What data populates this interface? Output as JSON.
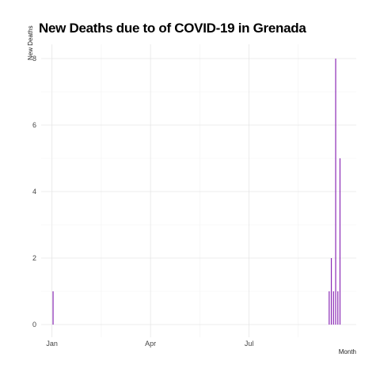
{
  "chart_data": {
    "type": "bar",
    "title": "New Deaths due to of COVID-19 in Grenada",
    "xlabel": "Month",
    "ylabel": "New Deaths",
    "x_ticks": [
      "2020-01-01",
      "2020-04-01",
      "2020-07-01"
    ],
    "x_tick_labels": [
      "Jan",
      "Apr",
      "Jul"
    ],
    "y_ticks": [
      0,
      2,
      4,
      6,
      8
    ],
    "ylim": [
      0,
      8
    ],
    "xlim": [
      "2019-12-22",
      "2020-10-08"
    ],
    "grid": true,
    "color": "#8B2BB6",
    "series": [
      {
        "x": [
          "2020-01-02",
          "2020-09-13",
          "2020-09-15",
          "2020-09-17",
          "2020-09-19",
          "2020-09-21",
          "2020-09-23"
        ],
        "values": [
          1,
          1,
          2,
          1,
          8,
          1,
          5
        ]
      }
    ]
  }
}
